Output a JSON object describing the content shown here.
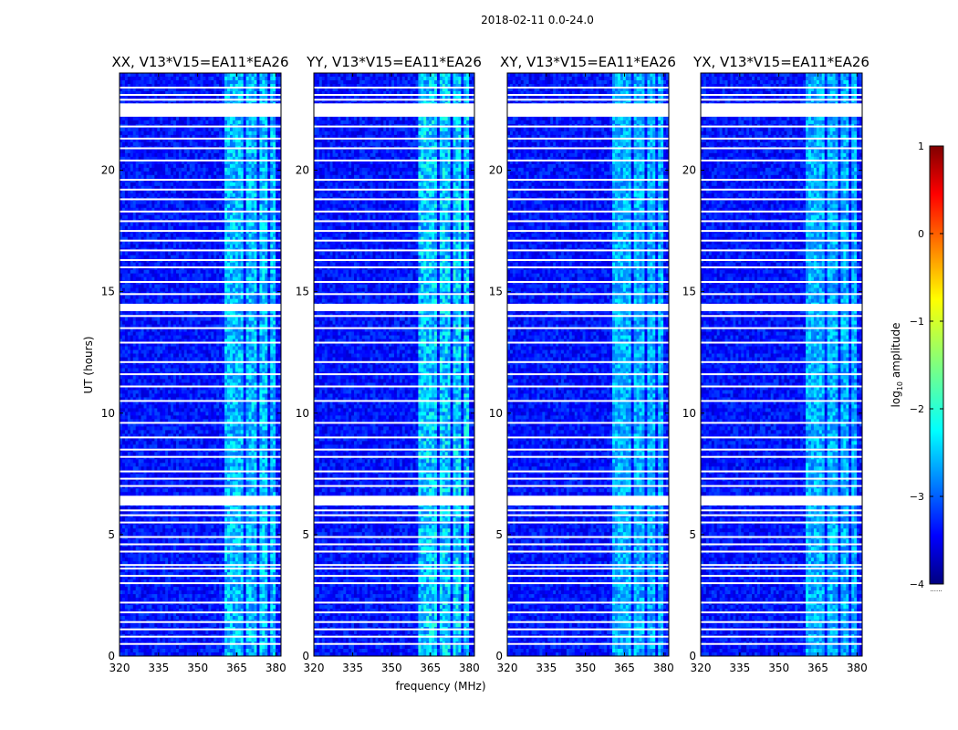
{
  "chart_data": {
    "type": "heatmap",
    "suptitle": "2018-02-11 0.0-24.0",
    "xlabel": "frequency (MHz)",
    "ylabel": "UT (hours)",
    "xlim": [
      320,
      382
    ],
    "ylim": [
      0,
      24
    ],
    "xticks": [
      320,
      335,
      350,
      365,
      380
    ],
    "yticks": [
      0,
      5,
      10,
      15,
      20
    ],
    "colormap": "jet",
    "panels": [
      {
        "title": "XX, V13*V15=EA11*EA26",
        "bright_band_strength": 1.0
      },
      {
        "title": "YY, V13*V15=EA11*EA26",
        "bright_band_strength": 1.15
      },
      {
        "title": "XY, V13*V15=EA11*EA26",
        "bright_band_strength": 0.85
      },
      {
        "title": "YX, V13*V15=EA11*EA26",
        "bright_band_strength": 0.85
      }
    ],
    "rfi_band_mhz": [
      [
        360,
        364
      ],
      [
        364.5,
        368
      ],
      [
        369,
        373
      ],
      [
        374,
        377
      ],
      [
        378,
        380
      ]
    ],
    "flagged_ut_ranges": [
      [
        22.2,
        22.75
      ],
      [
        14.2,
        14.5
      ],
      [
        6.2,
        6.6
      ]
    ],
    "flagged_ut_lines": [
      0.5,
      0.8,
      1.1,
      1.4,
      1.8,
      2.2,
      3.0,
      3.3,
      3.6,
      3.75,
      4.3,
      4.6,
      4.9,
      5.5,
      5.8,
      6.0,
      7.0,
      7.3,
      7.6,
      8.2,
      8.5,
      9.0,
      9.6,
      10.5,
      11.1,
      11.6,
      12.1,
      12.9,
      13.5,
      14.0,
      14.9,
      15.4,
      16.0,
      16.3,
      16.7,
      17.1,
      17.5,
      17.9,
      18.3,
      18.8,
      19.2,
      19.6,
      20.4,
      20.9,
      21.3,
      21.8,
      22.9,
      23.1,
      23.4
    ],
    "colorbar": {
      "label": "log10 amplitude",
      "label_main": "log",
      "label_sub": "10",
      "label_tail": " amplitude",
      "range": [
        -4,
        1
      ],
      "ticks": [
        1,
        0,
        -1,
        -2,
        -3,
        -4
      ],
      "tick_labels": [
        "1",
        "0",
        "−1",
        "−2",
        "−3",
        "−4"
      ],
      "footnote": "......"
    }
  }
}
